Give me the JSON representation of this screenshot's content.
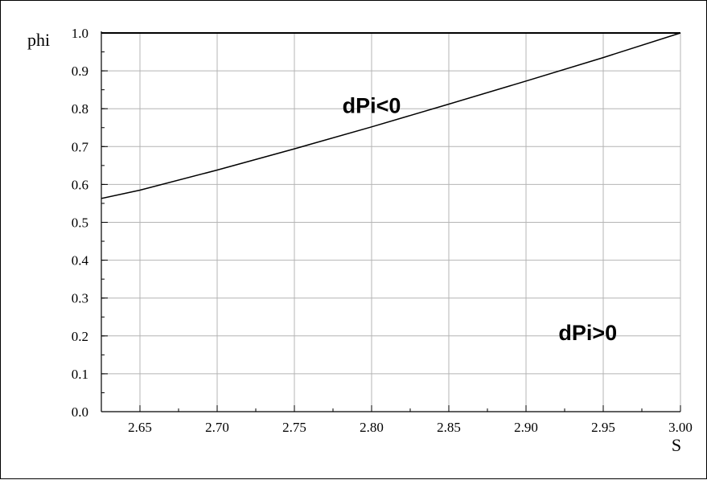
{
  "chart_data": {
    "type": "line",
    "xlabel": "S",
    "ylabel": "phi",
    "xlim": [
      2.625,
      3.0
    ],
    "ylim": [
      0.0,
      1.0
    ],
    "x_ticks": [
      "2.65",
      "2.70",
      "2.75",
      "2.80",
      "2.85",
      "2.90",
      "2.95",
      "3.00"
    ],
    "y_ticks": [
      "0.0",
      "0.1",
      "0.2",
      "0.3",
      "0.4",
      "0.5",
      "0.6",
      "0.7",
      "0.8",
      "0.9",
      "1.0"
    ],
    "grid": true,
    "series": [
      {
        "x": [
          2.625,
          2.65,
          2.7,
          2.75,
          2.8,
          2.85,
          2.9,
          2.95,
          3.0
        ],
        "y": [
          0.563,
          0.585,
          0.638,
          0.694,
          0.752,
          0.812,
          0.873,
          0.935,
          1.0
        ]
      }
    ],
    "annotations": [
      {
        "text": "dPi<0",
        "x": 2.8,
        "y": 0.81
      },
      {
        "text": "dPi>0",
        "x": 2.94,
        "y": 0.21
      }
    ]
  }
}
